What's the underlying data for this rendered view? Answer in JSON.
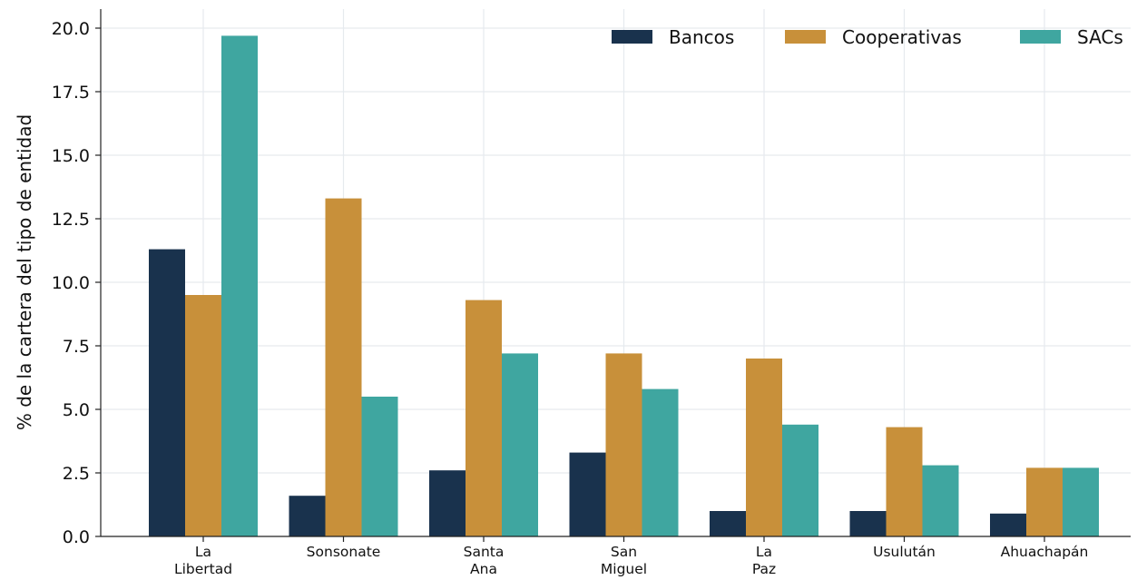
{
  "chart_data": {
    "type": "bar",
    "ylabel": "% de la cartera del tipo de entidad",
    "xlabel": "",
    "ylim": [
      0,
      20.5
    ],
    "yticks": [
      0.0,
      2.5,
      5.0,
      7.5,
      10.0,
      12.5,
      15.0,
      17.5,
      20.0
    ],
    "ytick_labels": [
      "0.0",
      "2.5",
      "5.0",
      "7.5",
      "10.0",
      "12.5",
      "15.0",
      "17.5",
      "20.0"
    ],
    "categories": [
      [
        "La",
        "Libertad"
      ],
      [
        "Sonsonate"
      ],
      [
        "Santa",
        "Ana"
      ],
      [
        "San",
        "Miguel"
      ],
      [
        "La",
        "Paz"
      ],
      [
        "Usulután"
      ],
      [
        "Ahuachapán"
      ]
    ],
    "series": [
      {
        "name": "Bancos",
        "color": "#19324d",
        "values": [
          11.3,
          1.6,
          2.6,
          3.3,
          1.0,
          1.0,
          0.9
        ]
      },
      {
        "name": "Cooperativas",
        "color": "#c8903a",
        "values": [
          9.5,
          13.3,
          9.3,
          7.2,
          7.0,
          4.3,
          2.7
        ]
      },
      {
        "name": "SACs",
        "color": "#3fa6a0",
        "values": [
          19.7,
          5.5,
          7.2,
          5.8,
          4.4,
          2.8,
          2.7
        ]
      }
    ],
    "grid": true,
    "legend_position": "top-right"
  }
}
